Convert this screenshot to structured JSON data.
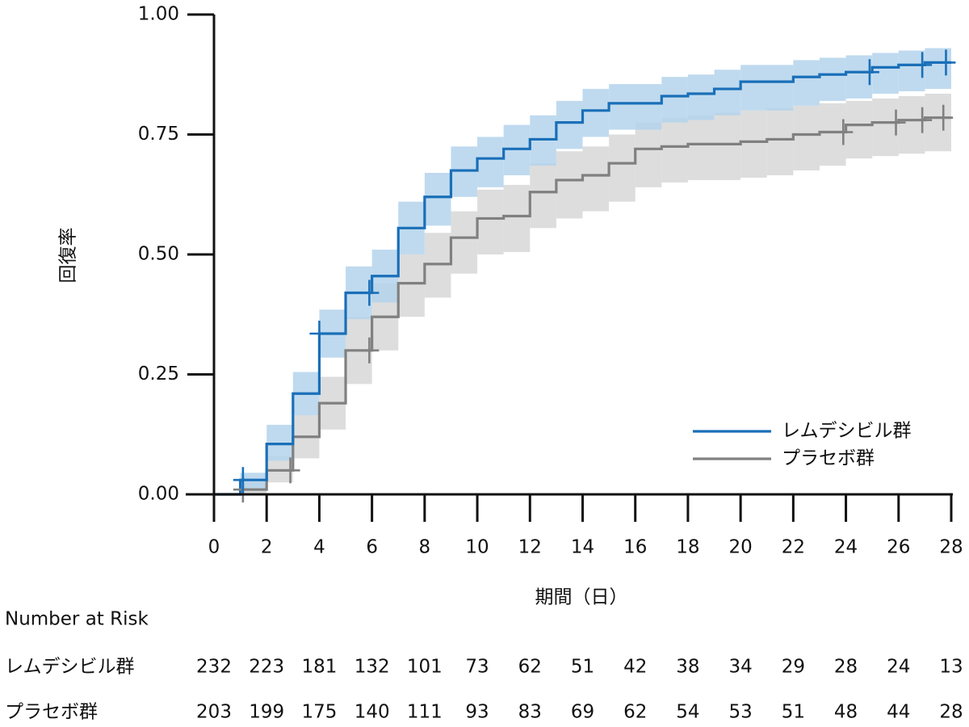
{
  "chart_data": {
    "type": "line",
    "subtype": "kaplan-meier-step",
    "ylabel": "回復率",
    "xlabel": "期間（日）",
    "xlim": [
      0,
      28
    ],
    "ylim": [
      0,
      1
    ],
    "x_ticks": [
      0,
      2,
      4,
      6,
      8,
      10,
      12,
      14,
      16,
      18,
      20,
      22,
      24,
      26,
      28
    ],
    "y_ticks": [
      "0.00",
      "0.25",
      "0.50",
      "0.75",
      "1.00"
    ],
    "legend_position": "lower-right",
    "series": [
      {
        "name": "レムデシビル群",
        "color": "#1a6fb8",
        "band_color": "#b4d4ec",
        "steps": [
          [
            0,
            0.0
          ],
          [
            1,
            0.03
          ],
          [
            2,
            0.105
          ],
          [
            3,
            0.21
          ],
          [
            4,
            0.335
          ],
          [
            5,
            0.42
          ],
          [
            6,
            0.455
          ],
          [
            7,
            0.555
          ],
          [
            8,
            0.62
          ],
          [
            9,
            0.675
          ],
          [
            10,
            0.7
          ],
          [
            11,
            0.72
          ],
          [
            12,
            0.74
          ],
          [
            13,
            0.775
          ],
          [
            14,
            0.8
          ],
          [
            15,
            0.815
          ],
          [
            17,
            0.83
          ],
          [
            18,
            0.835
          ],
          [
            19,
            0.845
          ],
          [
            20,
            0.86
          ],
          [
            22,
            0.87
          ],
          [
            23,
            0.875
          ],
          [
            24,
            0.88
          ],
          [
            25,
            0.89
          ],
          [
            26,
            0.895
          ],
          [
            27,
            0.9
          ],
          [
            28,
            0.9
          ]
        ],
        "ci_lower": [
          0.0,
          0.01,
          0.07,
          0.165,
          0.285,
          0.365,
          0.4,
          0.5,
          0.56,
          0.62,
          0.64,
          0.665,
          0.685,
          0.72,
          0.745,
          0.76,
          0.775,
          0.78,
          0.79,
          0.8,
          0.81,
          0.82,
          0.825,
          0.835,
          0.84,
          0.845,
          0.85
        ],
        "ci_upper": [
          0.0,
          0.045,
          0.145,
          0.255,
          0.385,
          0.475,
          0.51,
          0.61,
          0.67,
          0.725,
          0.745,
          0.77,
          0.79,
          0.82,
          0.845,
          0.855,
          0.87,
          0.875,
          0.885,
          0.895,
          0.905,
          0.91,
          0.915,
          0.92,
          0.925,
          0.93,
          0.93
        ],
        "censor_x": [
          1.1,
          4.0,
          5.9,
          24.9,
          26.9,
          27.8
        ]
      },
      {
        "name": "プラセボ群",
        "color": "#808080",
        "band_color": "#d9d9d9",
        "steps": [
          [
            0,
            0.0
          ],
          [
            1,
            0.01
          ],
          [
            2,
            0.05
          ],
          [
            3,
            0.12
          ],
          [
            4,
            0.19
          ],
          [
            5,
            0.3
          ],
          [
            6,
            0.37
          ],
          [
            7,
            0.44
          ],
          [
            8,
            0.48
          ],
          [
            9,
            0.535
          ],
          [
            10,
            0.575
          ],
          [
            11,
            0.58
          ],
          [
            12,
            0.63
          ],
          [
            13,
            0.655
          ],
          [
            14,
            0.665
          ],
          [
            15,
            0.69
          ],
          [
            16,
            0.72
          ],
          [
            17,
            0.725
          ],
          [
            18,
            0.73
          ],
          [
            19,
            0.73
          ],
          [
            20,
            0.735
          ],
          [
            21,
            0.74
          ],
          [
            22,
            0.75
          ],
          [
            23,
            0.755
          ],
          [
            24,
            0.77
          ],
          [
            25,
            0.775
          ],
          [
            26,
            0.78
          ],
          [
            27,
            0.785
          ],
          [
            28,
            0.785
          ]
        ],
        "ci_lower": [
          0.0,
          0.0,
          0.025,
          0.075,
          0.135,
          0.23,
          0.3,
          0.37,
          0.41,
          0.46,
          0.5,
          0.505,
          0.555,
          0.575,
          0.59,
          0.61,
          0.64,
          0.65,
          0.655,
          0.655,
          0.66,
          0.665,
          0.675,
          0.685,
          0.7,
          0.705,
          0.71,
          0.715,
          0.715
        ],
        "ci_upper": [
          0.0,
          0.025,
          0.08,
          0.165,
          0.245,
          0.37,
          0.44,
          0.5,
          0.545,
          0.59,
          0.635,
          0.645,
          0.69,
          0.715,
          0.725,
          0.75,
          0.775,
          0.785,
          0.79,
          0.795,
          0.8,
          0.805,
          0.81,
          0.815,
          0.82,
          0.825,
          0.83,
          0.835,
          0.835
        ],
        "censor_x": [
          1.1,
          2.9,
          5.9,
          23.9,
          25.9,
          26.9,
          27.7
        ]
      }
    ]
  },
  "risk_table": {
    "title": "Number at Risk",
    "rows": [
      {
        "label": "レムデシビル群",
        "values": [
          "232",
          "223",
          "181",
          "132",
          "101",
          "73",
          "62",
          "51",
          "42",
          "38",
          "34",
          "29",
          "28",
          "24",
          "13"
        ]
      },
      {
        "label": "プラセボ群",
        "values": [
          "203",
          "199",
          "175",
          "140",
          "111",
          "93",
          "83",
          "69",
          "62",
          "54",
          "53",
          "51",
          "48",
          "44",
          "28"
        ]
      }
    ]
  }
}
